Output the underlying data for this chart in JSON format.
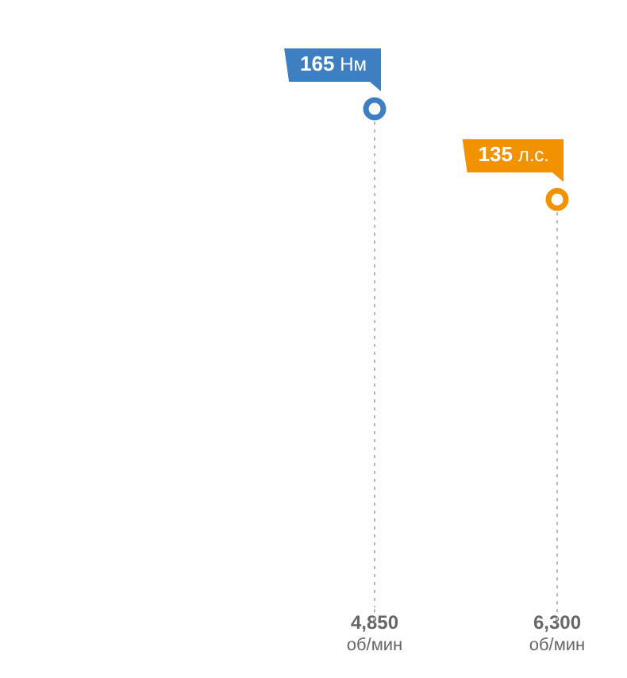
{
  "chart_data": {
    "type": "other",
    "legend": false,
    "xlabel": "об/мин",
    "categories": [
      "4,850",
      "6,300"
    ],
    "series": [
      {
        "color": "#3d7fc1",
        "values": [
          165,
          null
        ],
        "value_labels": [
          "165 Нм",
          null
        ]
      },
      {
        "color": "#f39200",
        "values": [
          null,
          135
        ],
        "value_labels": [
          null,
          "135 л.с."
        ]
      }
    ]
  }
}
